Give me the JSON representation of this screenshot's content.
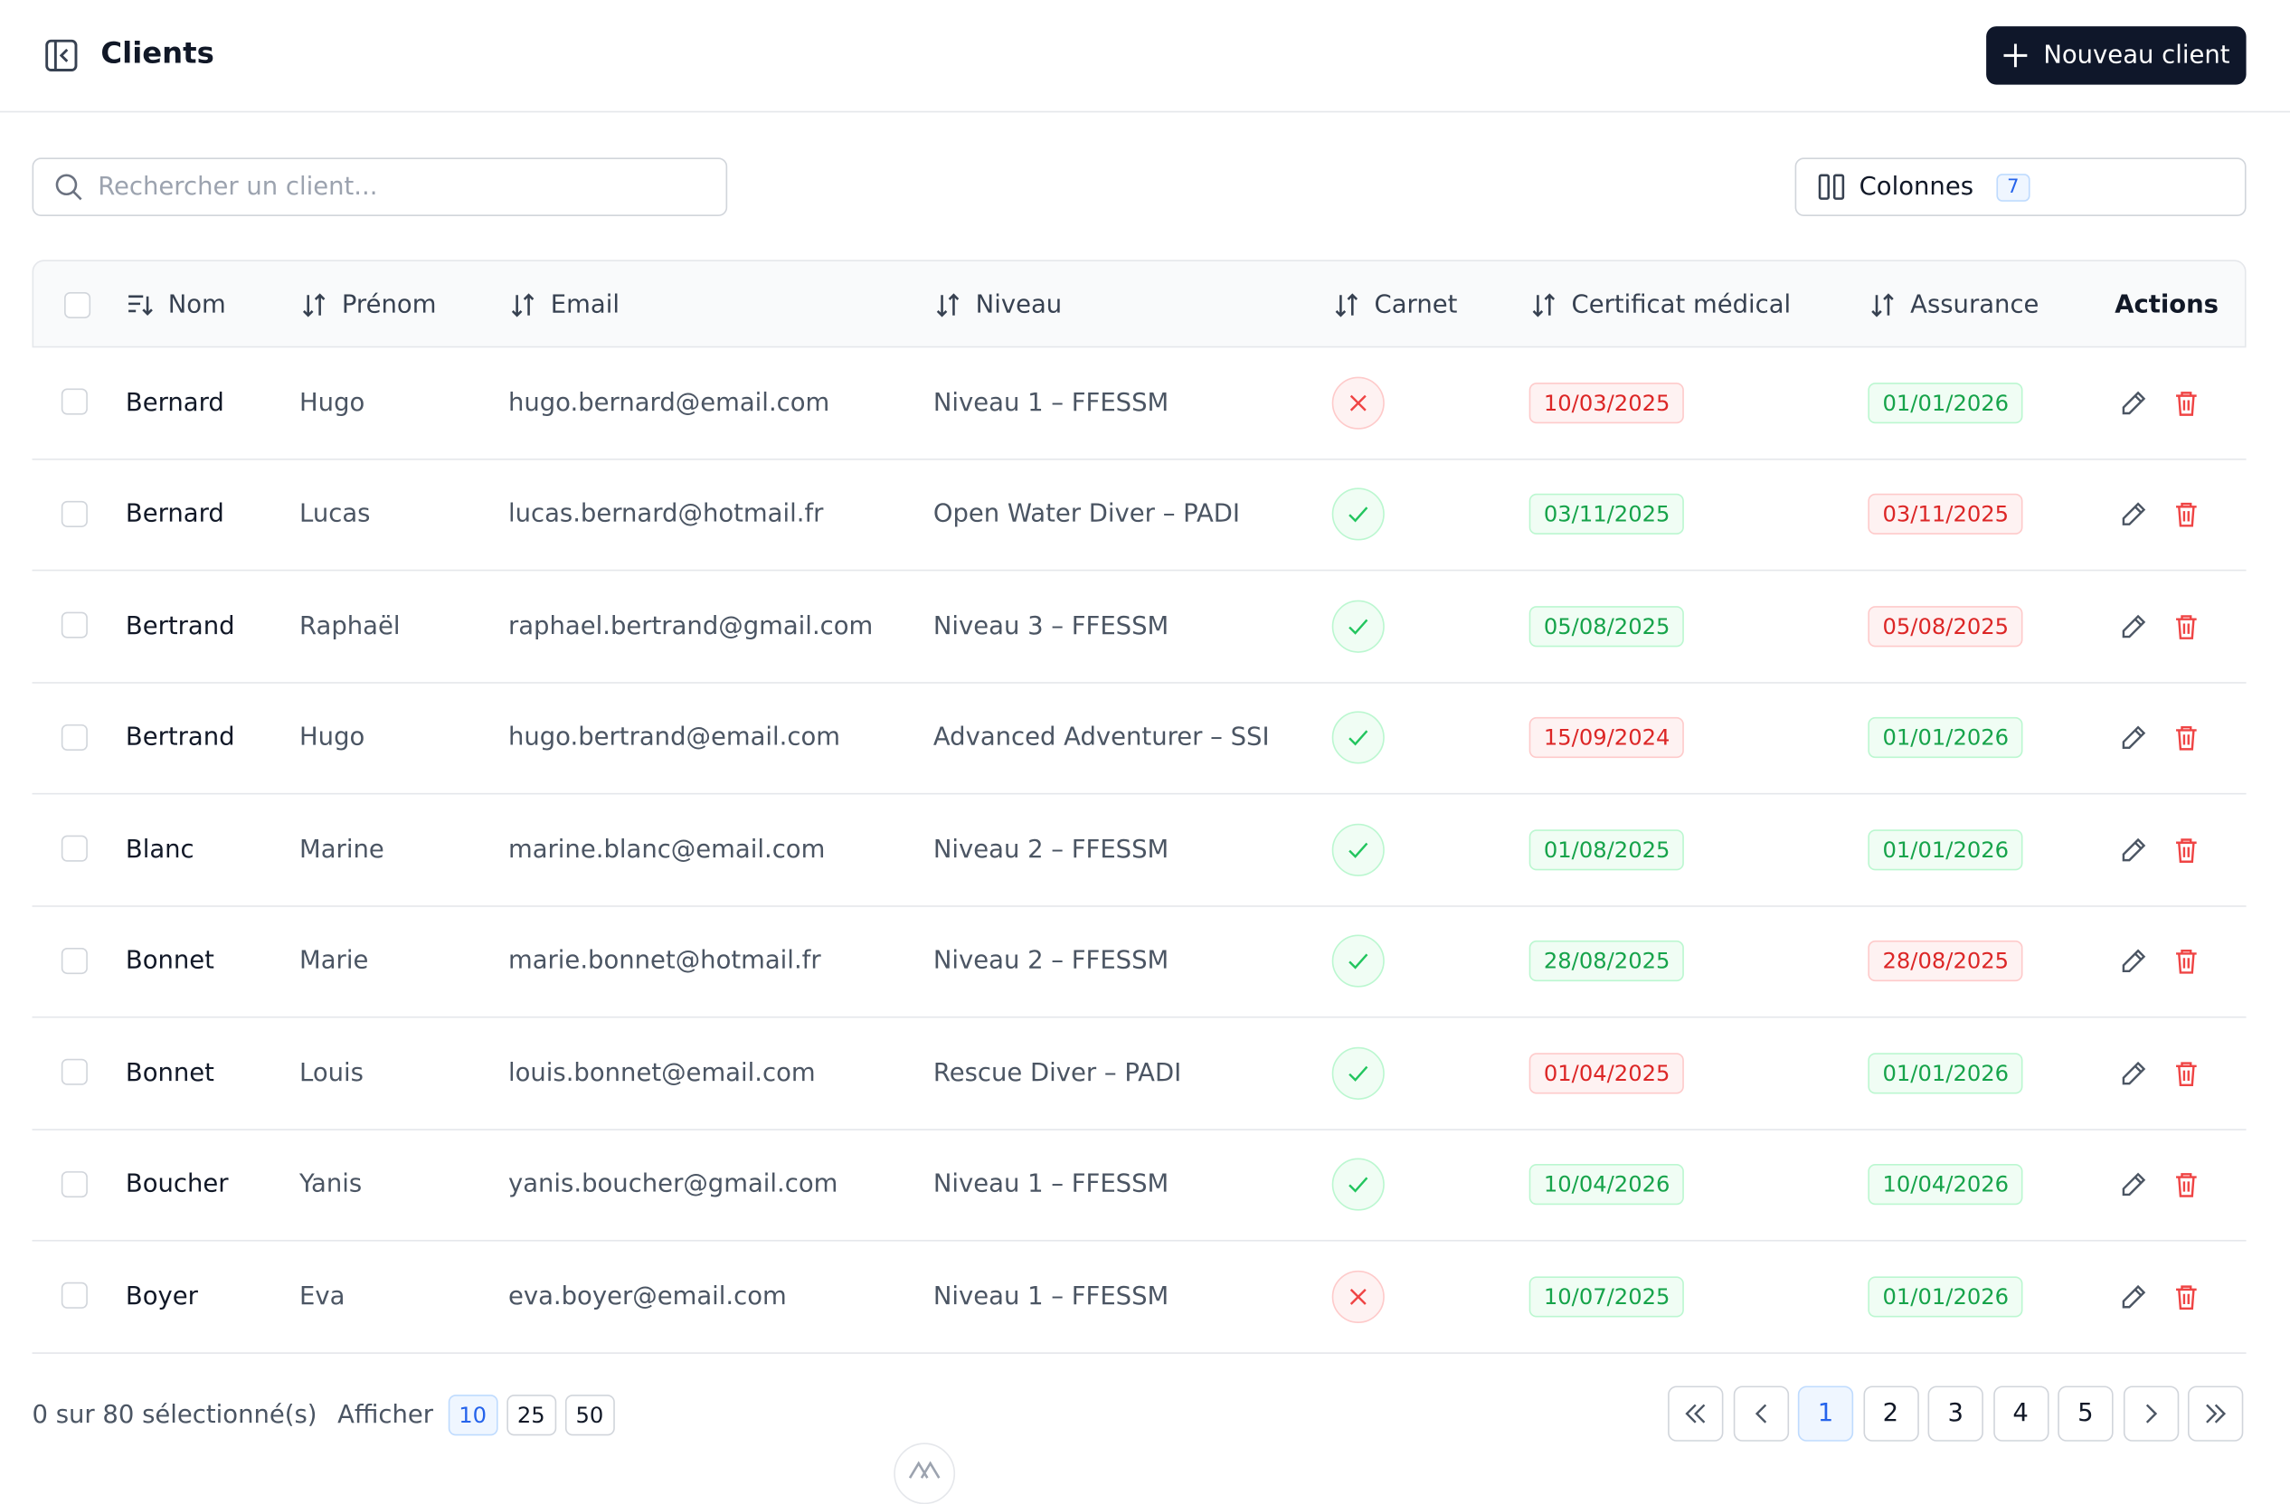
{
  "header": {
    "title": "Clients",
    "button": "Nouveau client"
  },
  "search": {
    "placeholder": "Rechercher un client..."
  },
  "columns_button": {
    "label": "Colonnes",
    "count": 7
  },
  "table": {
    "headers": [
      "Nom",
      "Prénom",
      "Email",
      "Niveau",
      "Carnet",
      "Certificat médical",
      "Assurance",
      "Actions"
    ],
    "rows": [
      {
        "nom": "Bernard",
        "prenom": "Hugo",
        "email": "hugo.bernard@email.com",
        "niveau": "Niveau 1 – FFESSM",
        "carnet_valid": false,
        "certificat": {
          "date": "10/03/2025",
          "valid": false
        },
        "assurance": {
          "date": "01/01/2026",
          "valid": true
        }
      },
      {
        "nom": "Bernard",
        "prenom": "Lucas",
        "email": "lucas.bernard@hotmail.fr",
        "niveau": "Open Water Diver – PADI",
        "carnet_valid": true,
        "certificat": {
          "date": "03/11/2025",
          "valid": true
        },
        "assurance": {
          "date": "03/11/2025",
          "valid": false
        }
      },
      {
        "nom": "Bertrand",
        "prenom": "Raphaël",
        "email": "raphael.bertrand@gmail.com",
        "niveau": "Niveau 3 – FFESSM",
        "carnet_valid": true,
        "certificat": {
          "date": "05/08/2025",
          "valid": true
        },
        "assurance": {
          "date": "05/08/2025",
          "valid": false
        }
      },
      {
        "nom": "Bertrand",
        "prenom": "Hugo",
        "email": "hugo.bertrand@email.com",
        "niveau": "Advanced Adventurer – SSI",
        "carnet_valid": true,
        "certificat": {
          "date": "15/09/2024",
          "valid": false
        },
        "assurance": {
          "date": "01/01/2026",
          "valid": true
        }
      },
      {
        "nom": "Blanc",
        "prenom": "Marine",
        "email": "marine.blanc@email.com",
        "niveau": "Niveau 2 – FFESSM",
        "carnet_valid": true,
        "certificat": {
          "date": "01/08/2025",
          "valid": true
        },
        "assurance": {
          "date": "01/01/2026",
          "valid": true
        }
      },
      {
        "nom": "Bonnet",
        "prenom": "Marie",
        "email": "marie.bonnet@hotmail.fr",
        "niveau": "Niveau 2 – FFESSM",
        "carnet_valid": true,
        "certificat": {
          "date": "28/08/2025",
          "valid": true
        },
        "assurance": {
          "date": "28/08/2025",
          "valid": false
        }
      },
      {
        "nom": "Bonnet",
        "prenom": "Louis",
        "email": "louis.bonnet@email.com",
        "niveau": "Rescue Diver – PADI",
        "carnet_valid": true,
        "certificat": {
          "date": "01/04/2025",
          "valid": false
        },
        "assurance": {
          "date": "01/01/2026",
          "valid": true
        }
      },
      {
        "nom": "Boucher",
        "prenom": "Yanis",
        "email": "yanis.boucher@gmail.com",
        "niveau": "Niveau 1 – FFESSM",
        "carnet_valid": true,
        "certificat": {
          "date": "10/04/2026",
          "valid": true
        },
        "assurance": {
          "date": "10/04/2026",
          "valid": true
        }
      },
      {
        "nom": "Boyer",
        "prenom": "Eva",
        "email": "eva.boyer@email.com",
        "niveau": "Niveau 1 – FFESSM",
        "carnet_valid": false,
        "certificat": {
          "date": "10/07/2025",
          "valid": true
        },
        "assurance": {
          "date": "01/01/2026",
          "valid": true
        }
      }
    ]
  },
  "footer": {
    "selection": "0 sur 80 sélectionné(s)",
    "show_label": "Afficher",
    "page_sizes": [
      10,
      25,
      50
    ],
    "page_size_selected": 0,
    "pages": [
      1,
      2,
      3,
      4,
      5
    ],
    "current_page": 0
  }
}
